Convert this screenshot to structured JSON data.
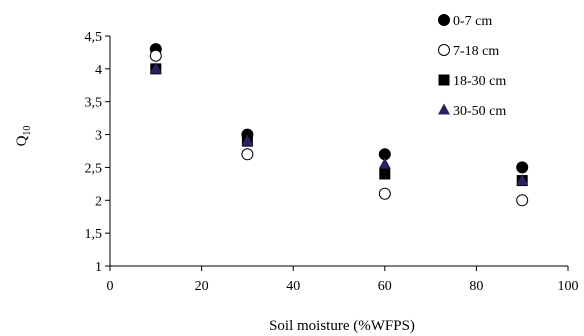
{
  "chart_data": {
    "type": "scatter",
    "xlabel": "Soil moisture (%WFPS)",
    "ylabel": "Q",
    "ylabel_sub": "10",
    "xlim": [
      0,
      100
    ],
    "ylim": [
      1,
      4.5
    ],
    "x_ticks": [
      0,
      20,
      40,
      60,
      80,
      100
    ],
    "y_ticks": [
      1,
      1.5,
      2,
      2.5,
      3,
      3.5,
      4,
      4.5
    ],
    "x_tick_labels": [
      "0",
      "20",
      "40",
      "60",
      "80",
      "100"
    ],
    "y_tick_labels": [
      "1",
      "1,5",
      "2",
      "2,5",
      "3",
      "3,5",
      "4",
      "4,5"
    ],
    "grid": false,
    "legend_position": "top-right",
    "series": [
      {
        "name": "0-7 cm",
        "marker": "circle-filled",
        "color": "#000000",
        "x": [
          10,
          30,
          60,
          90
        ],
        "y": [
          4.3,
          3.0,
          2.7,
          2.5
        ]
      },
      {
        "name": "7-18 cm",
        "marker": "circle-open",
        "color": "#000000",
        "x": [
          10,
          30,
          60,
          90
        ],
        "y": [
          4.2,
          2.7,
          2.1,
          2.0
        ]
      },
      {
        "name": "18-30 cm",
        "marker": "square-filled",
        "color": "#000000",
        "x": [
          10,
          30,
          60,
          90
        ],
        "y": [
          4.0,
          2.9,
          2.4,
          2.3
        ]
      },
      {
        "name": "30-50 cm",
        "marker": "triangle",
        "color": "#2e2060",
        "x": [
          10,
          30,
          60,
          90
        ],
        "y": [
          4.0,
          2.9,
          2.55,
          2.3
        ]
      }
    ]
  }
}
